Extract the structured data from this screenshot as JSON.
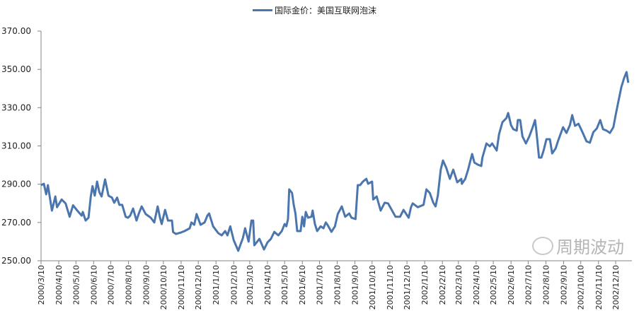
{
  "chart_data": {
    "type": "line",
    "title": "",
    "xlabel": "",
    "ylabel": "",
    "ylim": [
      250,
      370
    ],
    "y_ticks": [
      "250.00",
      "270.00",
      "290.00",
      "310.00",
      "330.00",
      "350.00",
      "370.00"
    ],
    "x_ticks": [
      "2000/3/10",
      "2000/4/10",
      "2000/5/10",
      "2000/6/10",
      "2000/7/10",
      "2000/8/10",
      "2000/9/10",
      "2000/10/10",
      "2000/11/10",
      "2000/12/10",
      "2001/1/10",
      "2001/2/10",
      "2001/3/10",
      "2001/4/10",
      "2001/5/10",
      "2001/6/10",
      "2001/7/10",
      "2001/8/10",
      "2001/9/10",
      "2001/10/10",
      "2001/11/10",
      "2001/12/10",
      "2002/1/10",
      "2002/2/10",
      "2002/3/10",
      "2002/4/10",
      "2002/5/10",
      "2002/6/10",
      "2002/7/10",
      "2002/8/10",
      "2002/9/10",
      "2002/10/10",
      "2002/11/10",
      "2002/12/10"
    ],
    "grid": false,
    "legend_position": "top",
    "series": [
      {
        "name": "国际金价：美国互联网泡沫",
        "color": "#4a76ad",
        "points": [
          [
            "2000-03-10",
            289.5
          ],
          [
            "2000-03-15",
            290.2
          ],
          [
            "2000-03-19",
            284.7
          ],
          [
            "2000-03-22",
            289.5
          ],
          [
            "2000-03-29",
            276.2
          ],
          [
            "2000-04-04",
            283.6
          ],
          [
            "2000-04-07",
            278
          ],
          [
            "2000-04-15",
            282
          ],
          [
            "2000-04-22",
            280
          ],
          [
            "2000-04-29",
            273
          ],
          [
            "2000-05-05",
            279
          ],
          [
            "2000-05-13",
            276
          ],
          [
            "2000-05-20",
            273.6
          ],
          [
            "2000-05-22",
            275.5
          ],
          [
            "2000-05-27",
            271
          ],
          [
            "2000-06-01",
            272.5
          ],
          [
            "2000-06-05",
            283.6
          ],
          [
            "2000-06-08",
            289
          ],
          [
            "2000-06-12",
            284
          ],
          [
            "2000-06-16",
            291.4
          ],
          [
            "2000-06-20",
            285.8
          ],
          [
            "2000-06-24",
            283.6
          ],
          [
            "2000-06-30",
            292.5
          ],
          [
            "2000-07-06",
            284
          ],
          [
            "2000-07-12",
            283
          ],
          [
            "2000-07-16",
            280.3
          ],
          [
            "2000-07-21",
            283
          ],
          [
            "2000-07-25",
            279.2
          ],
          [
            "2000-07-30",
            279.2
          ],
          [
            "2000-08-05",
            273
          ],
          [
            "2000-08-09",
            272.5
          ],
          [
            "2000-08-13",
            273.6
          ],
          [
            "2000-08-18",
            277.3
          ],
          [
            "2000-08-24",
            271
          ],
          [
            "2000-08-28",
            274.7
          ],
          [
            "2000-09-02",
            278.4
          ],
          [
            "2000-09-09",
            274.4
          ],
          [
            "2000-09-18",
            272.5
          ],
          [
            "2000-09-24",
            270
          ],
          [
            "2000-09-30",
            278.4
          ],
          [
            "2000-10-04",
            272.5
          ],
          [
            "2000-10-07",
            269.2
          ],
          [
            "2000-10-13",
            276.6
          ],
          [
            "2000-10-18",
            271
          ],
          [
            "2000-10-25",
            271
          ],
          [
            "2000-10-27",
            265
          ],
          [
            "2000-11-01",
            264
          ],
          [
            "2000-11-10",
            264.8
          ],
          [
            "2000-11-16",
            265.5
          ],
          [
            "2000-11-25",
            267
          ],
          [
            "2000-11-28",
            270
          ],
          [
            "2000-12-03",
            268.8
          ],
          [
            "2000-12-07",
            274.4
          ],
          [
            "2000-12-14",
            268.8
          ],
          [
            "2000-12-21",
            270
          ],
          [
            "2000-12-26",
            273.6
          ],
          [
            "2000-12-29",
            274.7
          ],
          [
            "2001-01-05",
            268
          ],
          [
            "2001-01-14",
            264.4
          ],
          [
            "2001-01-20",
            263.3
          ],
          [
            "2001-01-26",
            265.5
          ],
          [
            "2001-01-30",
            263.3
          ],
          [
            "2001-02-04",
            268
          ],
          [
            "2001-02-10",
            260.7
          ],
          [
            "2001-02-18",
            255.2
          ],
          [
            "2001-02-21",
            257.8
          ],
          [
            "2001-02-26",
            261.8
          ],
          [
            "2001-03-02",
            267
          ],
          [
            "2001-03-08",
            260
          ],
          [
            "2001-03-13",
            271
          ],
          [
            "2001-03-16",
            271
          ],
          [
            "2001-03-18",
            258.1
          ],
          [
            "2001-03-27",
            261.4
          ],
          [
            "2001-04-04",
            255.9
          ],
          [
            "2001-04-10",
            259.6
          ],
          [
            "2001-04-16",
            261.4
          ],
          [
            "2001-04-22",
            265.1
          ],
          [
            "2001-04-29",
            263.3
          ],
          [
            "2001-05-05",
            265.5
          ],
          [
            "2001-05-10",
            269.2
          ],
          [
            "2001-05-13",
            268
          ],
          [
            "2001-05-16",
            271.8
          ],
          [
            "2001-05-18",
            287.3
          ],
          [
            "2001-05-23",
            285.4
          ],
          [
            "2001-05-26",
            279.2
          ],
          [
            "2001-05-29",
            274.7
          ],
          [
            "2001-06-01",
            265.5
          ],
          [
            "2001-06-07",
            265.5
          ],
          [
            "2001-06-10",
            273
          ],
          [
            "2001-06-13",
            268
          ],
          [
            "2001-06-16",
            275.5
          ],
          [
            "2001-06-20",
            272.5
          ],
          [
            "2001-06-26",
            273
          ],
          [
            "2001-06-28",
            276.2
          ],
          [
            "2001-07-02",
            269.2
          ],
          [
            "2001-07-06",
            265.5
          ],
          [
            "2001-07-12",
            268
          ],
          [
            "2001-07-17",
            267
          ],
          [
            "2001-07-21",
            270
          ],
          [
            "2001-07-24",
            268.8
          ],
          [
            "2001-07-31",
            265.1
          ],
          [
            "2001-08-06",
            268
          ],
          [
            "2001-08-11",
            274.4
          ],
          [
            "2001-08-18",
            278.4
          ],
          [
            "2001-08-24",
            273
          ],
          [
            "2001-08-31",
            274.7
          ],
          [
            "2001-09-04",
            272.5
          ],
          [
            "2001-09-11",
            271.8
          ],
          [
            "2001-09-15",
            289.5
          ],
          [
            "2001-09-19",
            289.5
          ],
          [
            "2001-09-24",
            291.4
          ],
          [
            "2001-09-30",
            292.8
          ],
          [
            "2001-10-03",
            290.2
          ],
          [
            "2001-10-10",
            291.4
          ],
          [
            "2001-10-12",
            282
          ],
          [
            "2001-10-18",
            283.6
          ],
          [
            "2001-10-25",
            276.2
          ],
          [
            "2001-11-01",
            280.3
          ],
          [
            "2001-11-07",
            280
          ],
          [
            "2001-11-12",
            277.3
          ],
          [
            "2001-11-20",
            273
          ],
          [
            "2001-11-28",
            273
          ],
          [
            "2001-12-04",
            276.6
          ],
          [
            "2001-12-13",
            272.5
          ],
          [
            "2001-12-17",
            278
          ],
          [
            "2001-12-20",
            280
          ],
          [
            "2001-12-29",
            278
          ],
          [
            "2002-01-08",
            279.2
          ],
          [
            "2002-01-13",
            287.3
          ],
          [
            "2002-01-19",
            285.4
          ],
          [
            "2002-01-25",
            280.3
          ],
          [
            "2002-01-29",
            278.4
          ],
          [
            "2002-02-02",
            284
          ],
          [
            "2002-02-07",
            297.6
          ],
          [
            "2002-02-11",
            302.4
          ],
          [
            "2002-02-17",
            298.4
          ],
          [
            "2002-02-23",
            292.8
          ],
          [
            "2002-03-01",
            297.6
          ],
          [
            "2002-03-08",
            291
          ],
          [
            "2002-03-15",
            292.8
          ],
          [
            "2002-03-16",
            290.2
          ],
          [
            "2002-03-22",
            292.8
          ],
          [
            "2002-03-27",
            297.6
          ],
          [
            "2002-03-31",
            302.4
          ],
          [
            "2002-04-03",
            305.8
          ],
          [
            "2002-04-07",
            301.3
          ],
          [
            "2002-04-13",
            300.2
          ],
          [
            "2002-04-19",
            299.5
          ],
          [
            "2002-04-21",
            303.9
          ],
          [
            "2002-04-28",
            311.3
          ],
          [
            "2002-05-04",
            309.8
          ],
          [
            "2002-05-08",
            311.3
          ],
          [
            "2002-05-16",
            307.6
          ],
          [
            "2002-05-20",
            316.1
          ],
          [
            "2002-05-26",
            322.4
          ],
          [
            "2002-06-02",
            324.6
          ],
          [
            "2002-06-05",
            327.2
          ],
          [
            "2002-06-10",
            320.9
          ],
          [
            "2002-06-14",
            318.7
          ],
          [
            "2002-06-20",
            318
          ],
          [
            "2002-06-22",
            323.5
          ],
          [
            "2002-06-26",
            323.5
          ],
          [
            "2002-06-30",
            315
          ],
          [
            "2002-07-06",
            311.3
          ],
          [
            "2002-07-12",
            315
          ],
          [
            "2002-07-18",
            319.8
          ],
          [
            "2002-07-22",
            323.5
          ],
          [
            "2002-07-24",
            318.7
          ],
          [
            "2002-07-29",
            303.9
          ],
          [
            "2002-08-02",
            303.9
          ],
          [
            "2002-08-06",
            307.6
          ],
          [
            "2002-08-11",
            313.5
          ],
          [
            "2002-08-17",
            313.5
          ],
          [
            "2002-08-21",
            306.1
          ],
          [
            "2002-08-27",
            308.7
          ],
          [
            "2002-08-31",
            312.4
          ],
          [
            "2002-09-09",
            319.8
          ],
          [
            "2002-09-15",
            316.8
          ],
          [
            "2002-09-21",
            320.9
          ],
          [
            "2002-09-25",
            326.1
          ],
          [
            "2002-09-30",
            320.5
          ],
          [
            "2002-10-06",
            321.6
          ],
          [
            "2002-10-13",
            317.2
          ],
          [
            "2002-10-20",
            312.4
          ],
          [
            "2002-10-26",
            311.7
          ],
          [
            "2002-11-01",
            317.2
          ],
          [
            "2002-11-07",
            319.1
          ],
          [
            "2002-11-13",
            323.5
          ],
          [
            "2002-11-18",
            318.7
          ],
          [
            "2002-11-24",
            318
          ],
          [
            "2002-11-30",
            316.8
          ],
          [
            "2002-12-06",
            319.8
          ],
          [
            "2002-12-10",
            326.1
          ],
          [
            "2002-12-14",
            332
          ],
          [
            "2002-12-20",
            340.8
          ],
          [
            "2002-12-25",
            345.6
          ],
          [
            "2002-12-29",
            348.6
          ],
          [
            "2003-01-01",
            343
          ]
        ]
      }
    ]
  },
  "legend": {
    "label": "国际金价：美国互联网泡沫"
  },
  "watermark": {
    "text": "周期波动"
  }
}
